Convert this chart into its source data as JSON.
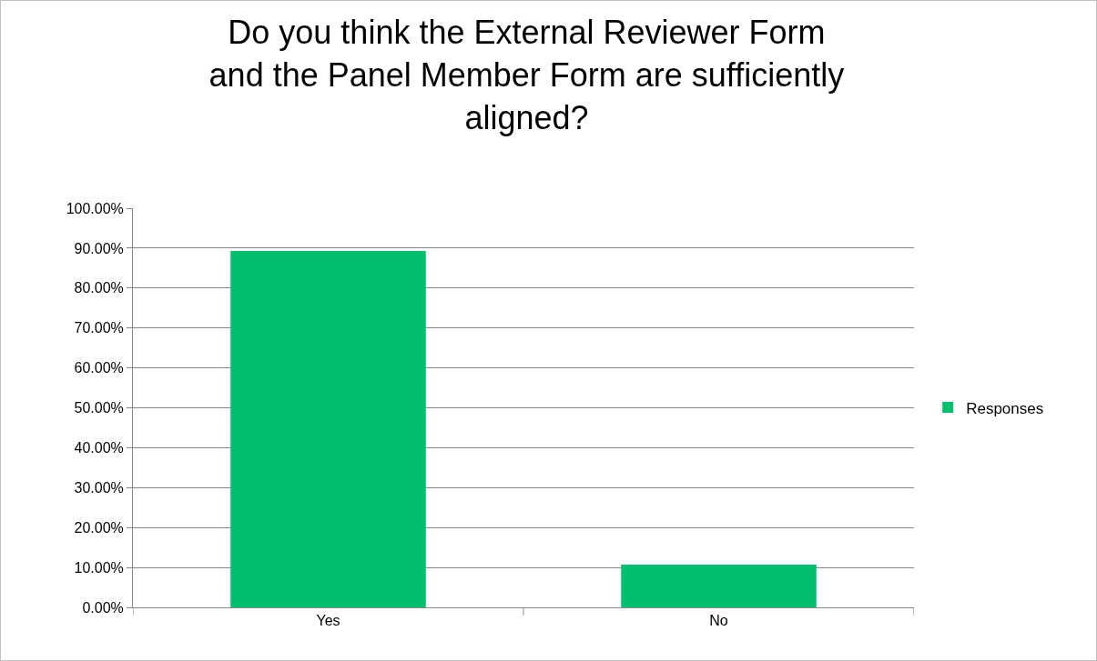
{
  "chart_data": {
    "type": "bar",
    "title": "Do you think the External Reviewer Form and the Panel Member Form are sufficiently aligned?",
    "categories": [
      "Yes",
      "No"
    ],
    "series": [
      {
        "name": "Responses",
        "color": "#00bf6f",
        "values": [
          89.3,
          10.7
        ]
      }
    ],
    "ylim": [
      0,
      100
    ],
    "yticks": [
      {
        "value": 0,
        "label": "0.00%"
      },
      {
        "value": 10,
        "label": "10.00%"
      },
      {
        "value": 20,
        "label": "20.00%"
      },
      {
        "value": 30,
        "label": "30.00%"
      },
      {
        "value": 40,
        "label": "40.00%"
      },
      {
        "value": 50,
        "label": "50.00%"
      },
      {
        "value": 60,
        "label": "60.00%"
      },
      {
        "value": 70,
        "label": "70.00%"
      },
      {
        "value": 80,
        "label": "80.00%"
      },
      {
        "value": 90,
        "label": "90.00%"
      },
      {
        "value": 100,
        "label": "100.00%"
      }
    ],
    "grid": "y",
    "legend": "right"
  }
}
